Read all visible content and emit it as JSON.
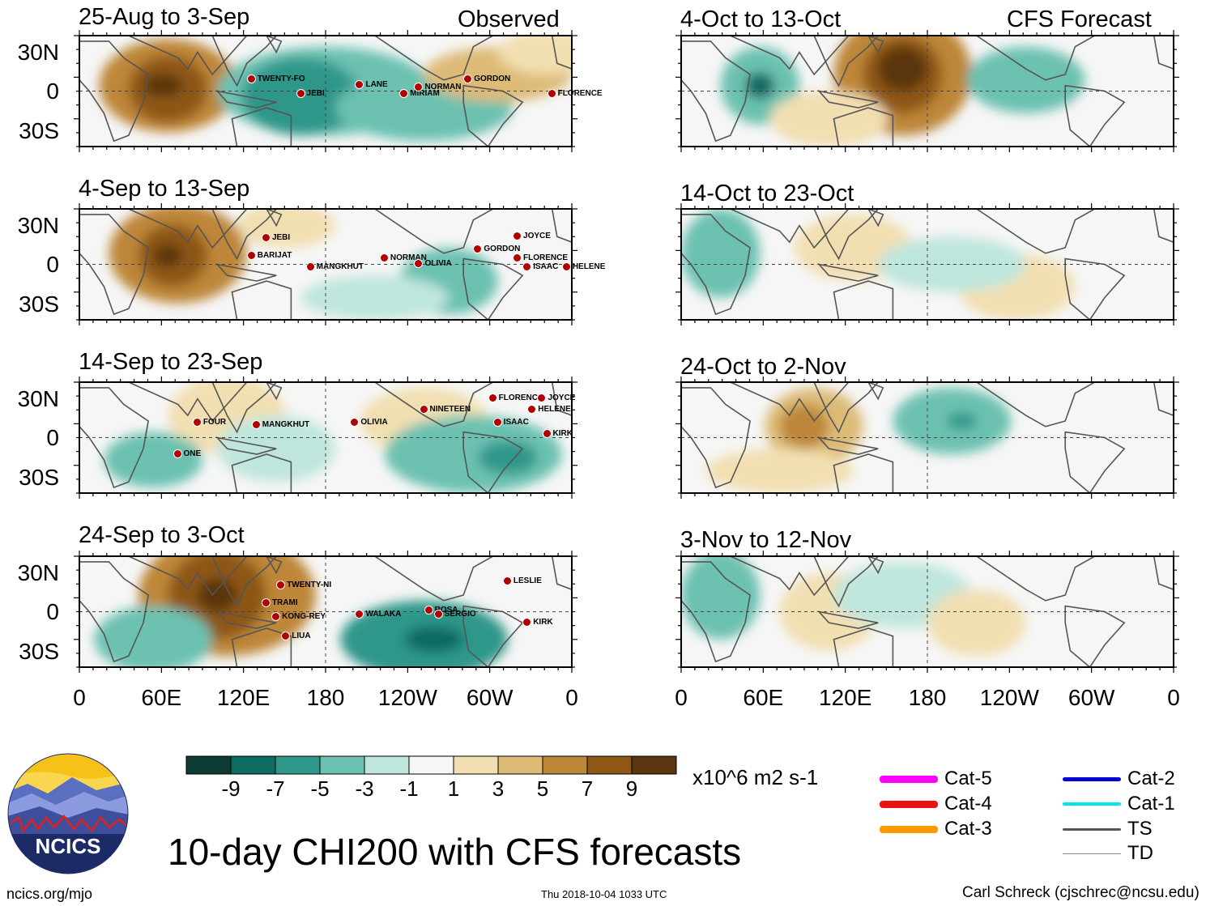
{
  "title": "10-day CHI200 with CFS forecasts",
  "observed_label": "Observed",
  "forecast_label": "CFS Forecast",
  "units": "x10^6 m2 s-1",
  "lat_labels": [
    "30N",
    "0",
    "30S"
  ],
  "lon_labels": [
    "0",
    "60E",
    "120E",
    "180",
    "120W",
    "60W",
    "0"
  ],
  "colorbar": {
    "labels": [
      "-9",
      "-7",
      "-5",
      "-3",
      "-1",
      "1",
      "3",
      "5",
      "7",
      "9"
    ],
    "colors": [
      "#0b3b33",
      "#0d6b60",
      "#2f978a",
      "#6cc1b1",
      "#bfe6dd",
      "#f6f6f6",
      "#f2dfb1",
      "#ddbb77",
      "#bd8638",
      "#8e5715",
      "#5a3510"
    ]
  },
  "observed_panels": [
    {
      "title": "25-Aug to 3-Sep",
      "storms": [
        "TWENTY-FO",
        "JEBI",
        "LANE",
        "MIRIAM",
        "NORMAN",
        "GORDON",
        "FLORENCE"
      ]
    },
    {
      "title": "4-Sep to 13-Sep",
      "storms": [
        "JEBI",
        "BARIJAT",
        "MANGKHUT",
        "NORMAN",
        "OLIVIA",
        "GORDON",
        "JOYCE",
        "FLORENCE",
        "ISAAC",
        "HELENE"
      ]
    },
    {
      "title": "14-Sep to 23-Sep",
      "storms": [
        "FOUR",
        "ONE",
        "MANGKHUT",
        "OLIVIA",
        "NINETEEN",
        "FLORENCE",
        "JOYCE",
        "HELENE",
        "ISAAC",
        "KIRK"
      ]
    },
    {
      "title": "24-Sep to 3-Oct",
      "storms": [
        "TWENTY-NI",
        "TRAMI",
        "KONG-REY",
        "LIUA",
        "WALAKA",
        "ROSA",
        "SERGIO",
        "LESLIE",
        "KIRK"
      ]
    }
  ],
  "forecast_panels": [
    {
      "title": "4-Oct to 13-Oct"
    },
    {
      "title": "14-Oct to 23-Oct"
    },
    {
      "title": "24-Oct to 2-Nov"
    },
    {
      "title": "3-Nov to 12-Nov"
    }
  ],
  "legend": [
    {
      "label": "Cat-5",
      "color": "#ff00ff",
      "style": "thick"
    },
    {
      "label": "Cat-4",
      "color": "#ee1111",
      "style": "thick"
    },
    {
      "label": "Cat-3",
      "color": "#ff9900",
      "style": "thick"
    },
    {
      "label": "Cat-2",
      "color": "#0000dd",
      "style": "thick"
    },
    {
      "label": "Cat-1",
      "color": "#00e5ee",
      "style": "thick"
    },
    {
      "label": "TS",
      "color": "#555555",
      "style": "medium"
    },
    {
      "label": "TD",
      "color": "#888888",
      "style": "thin"
    }
  ],
  "logo_text": "NCICS",
  "footer": {
    "url": "ncics.org/mjo",
    "timestamp": "Thu 2018-10-04 1033 UTC",
    "author": "Carl Schreck (cjschrec@ncsu.edu)"
  }
}
